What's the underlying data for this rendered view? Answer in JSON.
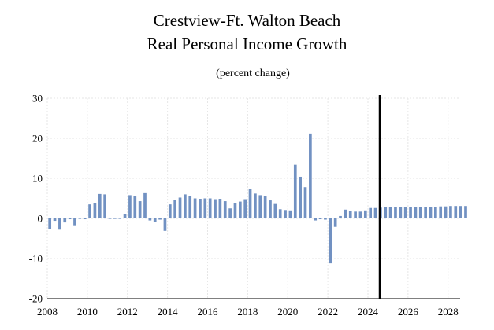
{
  "chart_data": {
    "type": "bar",
    "title": [
      "Crestview-Ft. Walton Beach",
      "Real Personal Income Growth"
    ],
    "subtitle": "(percent change)",
    "xlabel": "",
    "ylabel": "",
    "ylim": [
      -20,
      30
    ],
    "yticks": [
      30,
      20,
      10,
      0,
      -10,
      -20
    ],
    "x_range": [
      2008,
      2028.6
    ],
    "xticks": [
      2008,
      2010,
      2012,
      2014,
      2016,
      2018,
      2020,
      2022,
      2024,
      2026,
      2028
    ],
    "x_tick_labels": [
      "2008",
      "2010",
      "2012",
      "2014",
      "2016",
      "2018",
      "2020",
      "2022",
      "2024",
      "2026",
      "2028"
    ],
    "grid": true,
    "forecast_divider_x": 2024.6,
    "bar_color": "#7191c2",
    "frequency": "quarterly",
    "start_quarter": "2008 Q1",
    "values": [
      -2.7,
      -0.6,
      -2.8,
      -1.0,
      -0.2,
      -1.7,
      -0.1,
      -0.2,
      3.5,
      3.8,
      6.1,
      6.0,
      -0.1,
      0.0,
      -0.1,
      1.0,
      5.8,
      5.5,
      4.3,
      6.3,
      -0.5,
      -0.8,
      -0.3,
      -3.1,
      3.5,
      4.6,
      5.2,
      6.0,
      5.5,
      5.0,
      4.9,
      5.0,
      5.0,
      4.8,
      4.9,
      4.3,
      2.5,
      3.9,
      4.2,
      4.8,
      7.4,
      6.2,
      5.8,
      5.5,
      4.5,
      3.6,
      2.3,
      2.1,
      2.0,
      13.4,
      10.4,
      7.8,
      21.2,
      -0.5,
      -0.2,
      -0.3,
      -11.2,
      -2.1,
      0.6,
      2.2,
      1.8,
      1.7,
      1.7,
      2.0,
      2.6,
      2.6,
      2.7,
      2.8,
      2.8,
      2.8,
      2.8,
      2.8,
      2.8,
      2.8,
      2.8,
      2.8,
      2.9,
      2.9,
      3.0,
      3.0,
      3.1,
      3.1,
      3.1,
      3.1
    ]
  }
}
